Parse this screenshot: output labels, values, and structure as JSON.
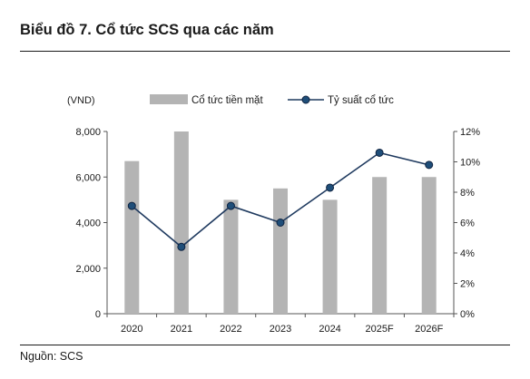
{
  "title": "Biểu đồ 7. Cổ tức SCS qua các năm",
  "source": "Nguồn: SCS",
  "chart_data": {
    "type": "bar",
    "categories": [
      "2020",
      "2021",
      "2022",
      "2023",
      "2024",
      "2025F",
      "2026F"
    ],
    "ylabel_left": "(VND)",
    "ylim_left": [
      0,
      8000
    ],
    "yticks_left": [
      "0",
      "2,000",
      "4,000",
      "6,000",
      "8,000"
    ],
    "ylim_right": [
      0,
      12
    ],
    "yticks_right": [
      "0%",
      "2%",
      "4%",
      "6%",
      "8%",
      "10%",
      "12%"
    ],
    "legend_position": "top",
    "series": [
      {
        "name": "Cổ tức tiền mặt",
        "type": "bar",
        "axis": "left",
        "color": "#b4b4b4",
        "values": [
          6700,
          8000,
          5000,
          5500,
          5000,
          6000,
          6000
        ]
      },
      {
        "name": "Tỷ suất cổ tức",
        "type": "line",
        "axis": "right",
        "color": "#1f3a5f",
        "marker_color": "#1f4e79",
        "values": [
          7.1,
          4.4,
          7.1,
          6.0,
          8.3,
          10.6,
          9.8
        ]
      }
    ]
  }
}
